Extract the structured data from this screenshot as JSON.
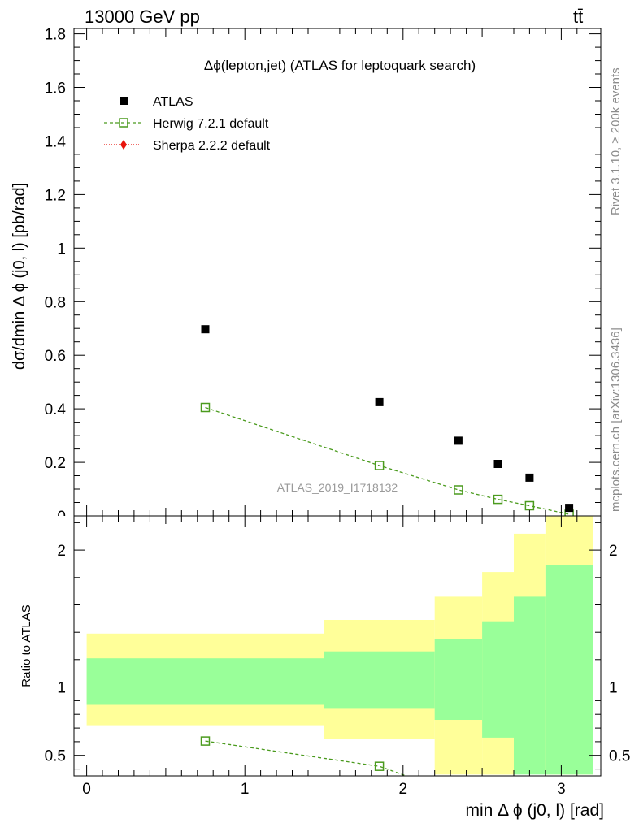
{
  "header": {
    "energy_label": "13000 GeV pp",
    "process_label": "tt̄",
    "side_rivet": "Rivet 3.1.10, ≥ 200k events",
    "side_mcplots": "mcplots.cern.ch [arXiv:1306.3436]",
    "watermark": "ATLAS_2019_I1718132"
  },
  "chart_data": [
    {
      "panel": "main",
      "type": "scatter",
      "title": "Δϕ(lepton,jet) (ATLAS for leptoquark search)",
      "ylabel": "dσ/dmin Δ ϕ (j0, l) [pb/rad]",
      "xlim": [
        -0.08,
        3.25
      ],
      "ylim": [
        0,
        1.82
      ],
      "yticks": [
        0,
        0.2,
        0.4,
        0.6,
        0.8,
        1,
        1.2,
        1.4,
        1.6,
        1.8
      ],
      "ytick_labels": [
        "0",
        "0.2",
        "0.4",
        "0.6",
        "0.8",
        "1",
        "1.2",
        "1.4",
        "1.6",
        "1.8"
      ],
      "legend_position": "top-left",
      "series": [
        {
          "name": "ATLAS",
          "marker": "filled-square",
          "color": "#000000",
          "x": [
            0.75,
            1.85,
            2.35,
            2.6,
            2.8,
            3.05
          ],
          "y": [
            0.697,
            0.425,
            0.281,
            0.194,
            0.143,
            0.03
          ]
        },
        {
          "name": "Herwig 7.2.1 default",
          "marker": "open-square",
          "line": "dashed",
          "color": "#4b9b1e",
          "x": [
            0.75,
            1.85,
            2.35,
            2.6,
            2.8,
            3.05
          ],
          "y": [
            0.405,
            0.188,
            0.097,
            0.062,
            0.038,
            0.006
          ]
        },
        {
          "name": "Sherpa 2.2.2 default",
          "marker": "filled-diamond",
          "line": "dotted",
          "color": "#e8140c",
          "x": [],
          "y": []
        }
      ]
    },
    {
      "panel": "ratio",
      "type": "area",
      "ylabel": "Ratio to ATLAS",
      "xlabel": "min Δ ϕ (j0, l) [rad]",
      "xlim": [
        -0.08,
        3.25
      ],
      "ylim": [
        0.35,
        2.25
      ],
      "yticks": [
        0.5,
        1,
        2
      ],
      "ytick_labels": [
        "0.5",
        "1",
        "2"
      ],
      "xticks": [
        0,
        1,
        2,
        3
      ],
      "xtick_labels": [
        "0",
        "1",
        "2",
        "3"
      ],
      "bins": [
        [
          0,
          1.5
        ],
        [
          1.5,
          2.2
        ],
        [
          2.2,
          2.5
        ],
        [
          2.5,
          2.7
        ],
        [
          2.7,
          2.9
        ],
        [
          2.9,
          3.2
        ]
      ],
      "band_outer": {
        "color": "#ffff99",
        "low": [
          0.72,
          0.62,
          0.36,
          0.36,
          0.37,
          0.36
        ],
        "high": [
          1.39,
          1.49,
          1.66,
          1.84,
          2.12,
          2.32
        ]
      },
      "band_inner": {
        "color": "#99ff99",
        "low": [
          0.87,
          0.84,
          0.76,
          0.63,
          0.36,
          0.36
        ],
        "high": [
          1.21,
          1.26,
          1.35,
          1.48,
          1.66,
          1.89
        ]
      },
      "series": [
        {
          "name": "Herwig 7.2.1 default",
          "color": "#4b9b1e",
          "x": [
            0.75,
            1.85
          ],
          "y": [
            0.605,
            0.42
          ],
          "line_end": [
            2.02,
            0.35
          ]
        }
      ]
    }
  ]
}
